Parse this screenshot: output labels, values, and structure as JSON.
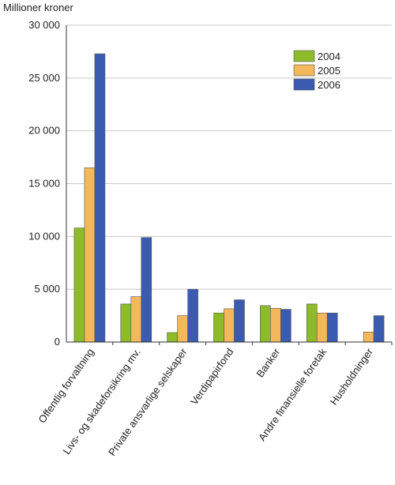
{
  "chart_data": {
    "type": "bar",
    "ylabel": "Millioner kroner",
    "ylim": [
      0,
      30000
    ],
    "yticks": [
      0,
      5000,
      10000,
      15000,
      20000,
      25000,
      30000
    ],
    "ytick_labels": [
      "0",
      "5 000",
      "10 000",
      "15 000",
      "20 000",
      "25 000",
      "30 000"
    ],
    "categories": [
      "Offentlig forvaltning",
      "Livs- og skadeforsikring mv.",
      "Private ansvarlige selskaper",
      "Verdipapirfond",
      "Banker",
      "Andre finansielle foretak",
      "Husholdninger"
    ],
    "series": [
      {
        "name": "2004",
        "color": "#8dbb2a",
        "values": [
          10800,
          3600,
          900,
          2750,
          3450,
          3600,
          0
        ]
      },
      {
        "name": "2005",
        "color": "#f2b85b",
        "values": [
          16500,
          4300,
          2500,
          3150,
          3200,
          2750,
          950
        ]
      },
      {
        "name": "2006",
        "color": "#3a5bb0",
        "values": [
          27300,
          9900,
          5000,
          4000,
          3100,
          2750,
          2500
        ]
      }
    ],
    "grid": true,
    "legend_position": "top-right"
  }
}
